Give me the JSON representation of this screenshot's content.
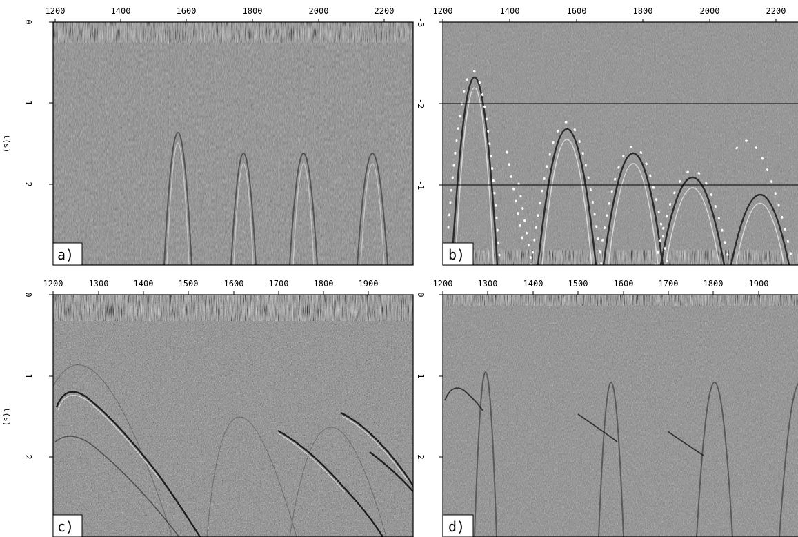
{
  "figure": {
    "panels": [
      {
        "id": "a",
        "label": "a)",
        "x_ticks": [
          "1200",
          "1400",
          "1600",
          "1800",
          "2000",
          "2200"
        ],
        "y_ticks": [
          "0",
          "1",
          "2"
        ],
        "right_ticks": [],
        "y_axis_title": "t(s)"
      },
      {
        "id": "b",
        "label": "b)",
        "x_ticks": [
          "1200",
          "1400",
          "1600",
          "1800",
          "2000",
          "2200"
        ],
        "y_ticks": [],
        "right_ticks": [
          "-3",
          "-2",
          "-1"
        ],
        "y_axis_title": ""
      },
      {
        "id": "c",
        "label": "c)",
        "x_ticks": [
          "1200",
          "1300",
          "1400",
          "1500",
          "1600",
          "1700",
          "1800",
          "1900"
        ],
        "y_ticks": [
          "0",
          "1",
          "2"
        ],
        "right_ticks": [],
        "y_axis_title": "t(s)"
      },
      {
        "id": "d",
        "label": "d)",
        "x_ticks": [
          "1200",
          "1300",
          "1400",
          "1500",
          "1600",
          "1700",
          "1800",
          "1900"
        ],
        "y_ticks": [
          "0",
          "1",
          "2"
        ],
        "right_ticks": [],
        "y_axis_title": ""
      }
    ]
  }
}
